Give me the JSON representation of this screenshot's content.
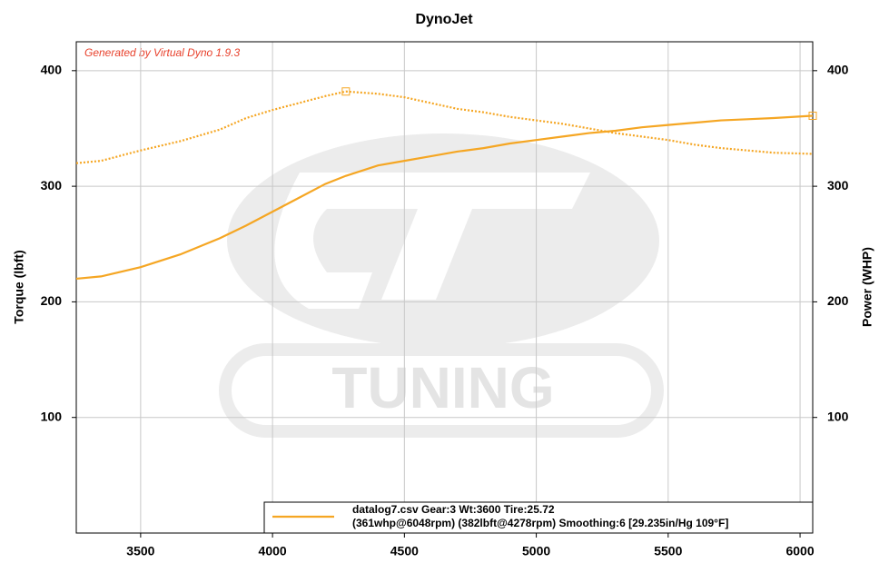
{
  "chart_data": {
    "type": "line",
    "title": "DynoJet",
    "watermark": "TUNING",
    "annotation": "Generated by Virtual Dyno 1.9.3",
    "ylabel": "Torque (lbft)",
    "y2label": "Power (WHP)",
    "x": [
      3256,
      3350,
      3500,
      3650,
      3800,
      3900,
      4000,
      4100,
      4200,
      4278,
      4400,
      4500,
      4600,
      4700,
      4800,
      4900,
      5000,
      5100,
      5200,
      5300,
      5400,
      5500,
      5600,
      5700,
      5800,
      5900,
      6048
    ],
    "series": [
      {
        "color": "#f5a623",
        "line_style": "dotted",
        "values": [
          320,
          322,
          331,
          339,
          349,
          359,
          366,
          372,
          378,
          382,
          380,
          377,
          372,
          367,
          364,
          360,
          357,
          354,
          350,
          346,
          343,
          340,
          336,
          333,
          331,
          329,
          328
        ]
      },
      {
        "name": "datalog7.csv Gear:3 Wt:3600 Tire:25.72",
        "color": "#f5a623",
        "line_style": "solid",
        "axis": "y2",
        "values": [
          220,
          222,
          230,
          241,
          255,
          266,
          278,
          290,
          302,
          309,
          318,
          322,
          326,
          330,
          333,
          337,
          340,
          343,
          346,
          348,
          351,
          353,
          355,
          357,
          358,
          359,
          361
        ]
      }
    ],
    "legend_detail": "(361whp@6048rpm) (382lbft@4278rpm) Smoothing:6 [29.235in/Hg 109°F]",
    "legend_position": "bottom-right",
    "xlim": [
      3256,
      6048
    ],
    "xticks": [
      3500,
      4000,
      4500,
      5000,
      5500,
      6000
    ],
    "ylim": [
      0,
      425
    ],
    "yticks": [
      100,
      200,
      300,
      400
    ],
    "y2lim": [
      0,
      425
    ],
    "y2ticks": [
      100,
      200,
      300,
      400
    ],
    "grid": true
  }
}
